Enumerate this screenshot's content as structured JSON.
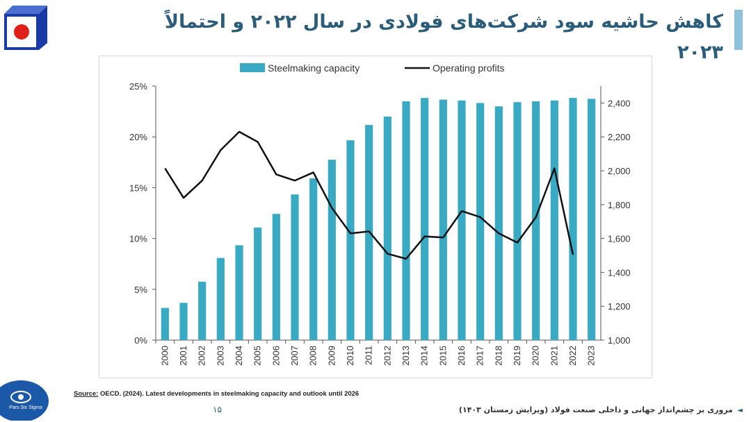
{
  "title": "کاهش حاشیه سود شرکت‌های فولادی در سال ۲۰۲۲ و احتمالاً ۲۰۲۳",
  "colors": {
    "accent": "#2b5d7b",
    "bar": "#3aa9c4",
    "line": "#111111",
    "logo_red": "#e0201b",
    "logo_blue": "#1a3aa5"
  },
  "source": {
    "label": "Source:",
    "text": "OECD. (2024). Latest developments in steelmaking capacity and outlook until 2026"
  },
  "page_number": "۱۵",
  "footer": "مروری بر چشم‌انداز جهانی و داخلی صنعت فولاد (ویرایش زمستان ۱۴۰۳)",
  "footer_arrow": "◄",
  "bottom_logo_text": "Pars Six Sigma",
  "chart_data": {
    "type": "bar",
    "categories": [
      "2000",
      "2001",
      "2002",
      "2003",
      "2004",
      "2005",
      "2006",
      "2007",
      "2008",
      "2009",
      "2010",
      "2011",
      "2012",
      "2013",
      "2014",
      "2015",
      "2016",
      "2017",
      "2018",
      "2019",
      "2020",
      "2021",
      "2022",
      "2023"
    ],
    "series": [
      {
        "name": "Steelmaking capacity",
        "type": "bar",
        "axis": "right",
        "values": [
          1190,
          1220,
          1345,
          1485,
          1560,
          1665,
          1745,
          1860,
          1955,
          2065,
          2180,
          2270,
          2320,
          2410,
          2430,
          2420,
          2415,
          2400,
          2380,
          2405,
          2410,
          2415,
          2430,
          2425
        ]
      },
      {
        "name": "Operating profits",
        "type": "line",
        "axis": "left",
        "values": [
          16.9,
          14.0,
          15.7,
          18.7,
          20.5,
          19.5,
          16.3,
          15.7,
          16.5,
          13.0,
          10.5,
          10.7,
          8.5,
          8.0,
          10.2,
          10.1,
          12.7,
          12.1,
          10.5,
          9.6,
          12.1,
          16.9,
          8.4,
          null
        ]
      }
    ],
    "left_axis": {
      "ylim": [
        0,
        25
      ],
      "ticks": [
        "0%",
        "5%",
        "10%",
        "15%",
        "20%",
        "25%"
      ]
    },
    "right_axis": {
      "ylim": [
        1000,
        2500
      ],
      "ticks": [
        "1,000",
        "1,200",
        "1,400",
        "1,600",
        "1,800",
        "2,000",
        "2,200",
        "2,400"
      ]
    },
    "legend": {
      "placement": "top-center",
      "items": [
        "Steelmaking capacity",
        "Operating profits"
      ]
    },
    "grid": false
  }
}
